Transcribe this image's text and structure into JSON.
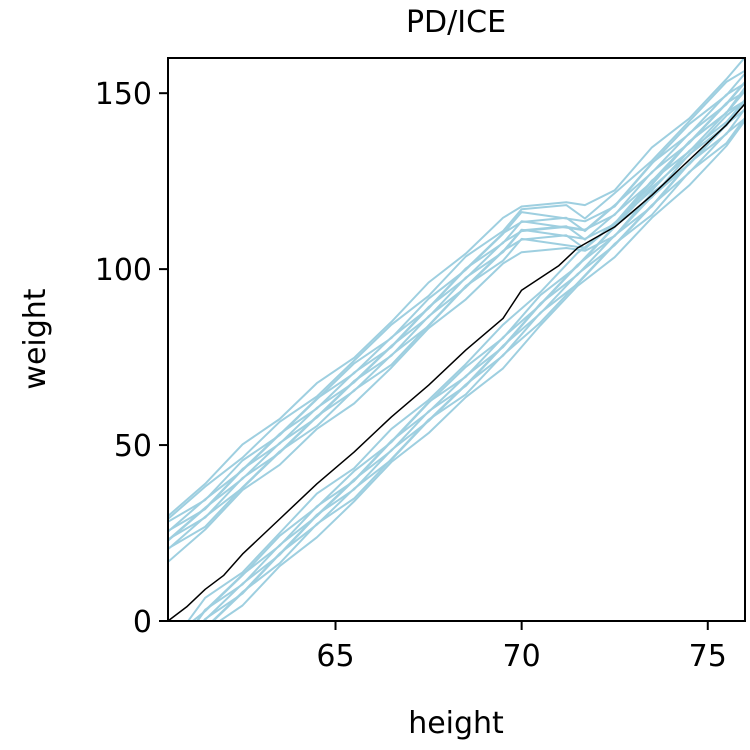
{
  "chart_data": {
    "type": "line",
    "title": "PD/ICE",
    "xlabel": "height",
    "ylabel": "weight",
    "xlim": [
      60.5,
      76
    ],
    "ylim": [
      0,
      160
    ],
    "xticks": [
      65,
      70,
      75
    ],
    "yticks": [
      0,
      50,
      100,
      150
    ],
    "grid": false,
    "colors": {
      "ice": "#9ecfe0",
      "pd": "#000000"
    },
    "ice_groups": [
      {
        "x": [
          60.5,
          61.5,
          62.5,
          63.5,
          64.5,
          65.5,
          66.5,
          67.5,
          68.5,
          69.5,
          70.0,
          71.2,
          71.7,
          72.5,
          73.5,
          74.5,
          75.5,
          76.0
        ],
        "y": [
          22,
          30,
          40,
          49,
          58,
          67,
          76,
          86,
          96,
          105,
          110,
          110,
          108,
          114,
          125,
          135,
          145,
          150
        ],
        "offsets": [
          -4,
          -2,
          -1,
          0,
          1,
          2,
          3,
          4,
          5,
          7,
          9
        ]
      },
      {
        "x": [
          60.5,
          61.0,
          61.5,
          62.5,
          63.5,
          64.5,
          65.5,
          66.5,
          67.5,
          68.5,
          69.5,
          70.5,
          71.5,
          72.5,
          73.5,
          74.5,
          75.5,
          76.0
        ],
        "y": [
          -12,
          -5,
          1,
          10,
          20,
          30,
          39,
          49,
          59,
          68,
          78,
          89,
          99,
          109,
          119,
          130,
          140,
          146
        ],
        "offsets": [
          -5,
          -3,
          -2,
          -1,
          0,
          1,
          2,
          3,
          5
        ]
      }
    ],
    "pd": {
      "x": [
        60.5,
        61.0,
        61.5,
        62.0,
        62.5,
        63.5,
        64.5,
        65.5,
        66.5,
        67.5,
        68.5,
        69.5,
        70.0,
        71.0,
        71.5,
        72.5,
        73.5,
        74.5,
        75.5,
        76.0
      ],
      "y": [
        0,
        4,
        9,
        13,
        19,
        29,
        39,
        48,
        58,
        67,
        77,
        86,
        94,
        101,
        106,
        112,
        121,
        131,
        141,
        147
      ]
    }
  }
}
